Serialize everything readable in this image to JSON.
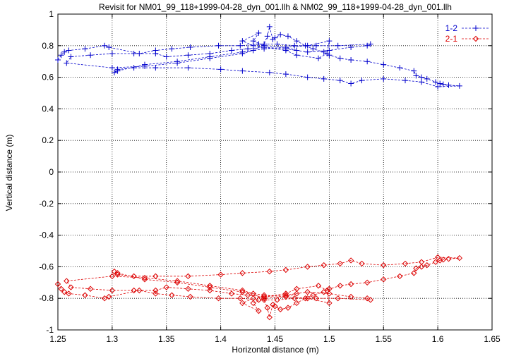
{
  "chart_data": {
    "type": "line",
    "title": "Revisit for NM01_99_118+1999-04-28_dyn_001.llh & NM02_99_118+1999-04-28_dyn_001.llh",
    "xlabel": "Horizontal distance (m)",
    "ylabel": "Vertical distance (m)",
    "xlim": [
      1.25,
      1.65
    ],
    "ylim": [
      -1,
      1
    ],
    "xticks": [
      "1.25",
      "1.3",
      "1.35",
      "1.4",
      "1.45",
      "1.5",
      "1.55",
      "1.6",
      "1.65"
    ],
    "yticks": [
      "1",
      "0.8",
      "0.6",
      "0.4",
      "0.2",
      "0",
      "-0.2",
      "-0.4",
      "-0.6",
      "-0.8",
      "-1"
    ],
    "grid": true,
    "legend_position": "top-right",
    "series": [
      {
        "name": "1-2",
        "color": "#0000cc",
        "marker": "plus",
        "points": [
          [
            1.25,
            0.71
          ],
          [
            1.253,
            0.74
          ],
          [
            1.256,
            0.76
          ],
          [
            1.26,
            0.77
          ],
          [
            1.275,
            0.78
          ],
          [
            1.293,
            0.8
          ],
          [
            1.297,
            0.79
          ],
          [
            1.325,
            0.75
          ],
          [
            1.34,
            0.77
          ],
          [
            1.355,
            0.78
          ],
          [
            1.372,
            0.79
          ],
          [
            1.398,
            0.8
          ],
          [
            1.418,
            0.8
          ],
          [
            1.435,
            0.81
          ],
          [
            1.452,
            0.81
          ],
          [
            1.468,
            0.8
          ],
          [
            1.488,
            0.8
          ],
          [
            1.508,
            0.8
          ],
          [
            1.538,
            0.81
          ],
          [
            1.535,
            0.8
          ],
          [
            1.52,
            0.79
          ],
          [
            1.5,
            0.77
          ],
          [
            1.48,
            0.76
          ],
          [
            1.46,
            0.78
          ],
          [
            1.44,
            0.79
          ],
          [
            1.425,
            0.78
          ],
          [
            1.41,
            0.77
          ],
          [
            1.39,
            0.75
          ],
          [
            1.37,
            0.74
          ],
          [
            1.35,
            0.73
          ],
          [
            1.34,
            0.75
          ],
          [
            1.32,
            0.75
          ],
          [
            1.3,
            0.75
          ],
          [
            1.28,
            0.74
          ],
          [
            1.262,
            0.73
          ],
          [
            1.258,
            0.69
          ],
          [
            1.3,
            0.66
          ],
          [
            1.33,
            0.67
          ],
          [
            1.36,
            0.69
          ],
          [
            1.39,
            0.72
          ],
          [
            1.42,
            0.75
          ],
          [
            1.43,
            0.77
          ],
          [
            1.44,
            0.81
          ],
          [
            1.443,
            0.86
          ],
          [
            1.445,
            0.92
          ],
          [
            1.448,
            0.84
          ],
          [
            1.45,
            0.85
          ],
          [
            1.455,
            0.87
          ],
          [
            1.462,
            0.86
          ],
          [
            1.47,
            0.83
          ],
          [
            1.478,
            0.8
          ],
          [
            1.485,
            0.78
          ],
          [
            1.495,
            0.76
          ],
          [
            1.5,
            0.74
          ],
          [
            1.51,
            0.72
          ],
          [
            1.52,
            0.71
          ],
          [
            1.535,
            0.7
          ],
          [
            1.55,
            0.68
          ],
          [
            1.565,
            0.66
          ],
          [
            1.578,
            0.64
          ],
          [
            1.58,
            0.61
          ],
          [
            1.585,
            0.6
          ],
          [
            1.59,
            0.59
          ],
          [
            1.598,
            0.57
          ],
          [
            1.602,
            0.56
          ],
          [
            1.605,
            0.555
          ],
          [
            1.61,
            0.55
          ],
          [
            1.62,
            0.545
          ],
          [
            1.6,
            0.54
          ],
          [
            1.585,
            0.57
          ],
          [
            1.57,
            0.58
          ],
          [
            1.55,
            0.59
          ],
          [
            1.53,
            0.58
          ],
          [
            1.52,
            0.56
          ],
          [
            1.51,
            0.58
          ],
          [
            1.495,
            0.59
          ],
          [
            1.48,
            0.6
          ],
          [
            1.46,
            0.62
          ],
          [
            1.445,
            0.63
          ],
          [
            1.42,
            0.64
          ],
          [
            1.4,
            0.65
          ],
          [
            1.37,
            0.66
          ],
          [
            1.34,
            0.66
          ],
          [
            1.32,
            0.66
          ],
          [
            1.305,
            0.65
          ],
          [
            1.302,
            0.63
          ],
          [
            1.305,
            0.64
          ],
          [
            1.33,
            0.68
          ],
          [
            1.36,
            0.7
          ],
          [
            1.39,
            0.73
          ],
          [
            1.42,
            0.76
          ],
          [
            1.44,
            0.78
          ],
          [
            1.46,
            0.79
          ],
          [
            1.48,
            0.8
          ],
          [
            1.5,
            0.83
          ],
          [
            1.498,
            0.75
          ],
          [
            1.49,
            0.72
          ],
          [
            1.47,
            0.74
          ],
          [
            1.46,
            0.77
          ],
          [
            1.43,
            0.8
          ],
          [
            1.42,
            0.83
          ],
          [
            1.435,
            0.88
          ],
          [
            1.43,
            0.83
          ],
          [
            1.44,
            0.8
          ],
          [
            1.46,
            0.79
          ],
          [
            1.47,
            0.77
          ]
        ]
      },
      {
        "name": "2-1",
        "color": "#dd0000",
        "marker": "diamond",
        "points": [
          [
            1.25,
            -0.71
          ],
          [
            1.253,
            -0.74
          ],
          [
            1.256,
            -0.76
          ],
          [
            1.26,
            -0.77
          ],
          [
            1.275,
            -0.78
          ],
          [
            1.293,
            -0.8
          ],
          [
            1.297,
            -0.79
          ],
          [
            1.325,
            -0.75
          ],
          [
            1.34,
            -0.77
          ],
          [
            1.355,
            -0.78
          ],
          [
            1.372,
            -0.79
          ],
          [
            1.398,
            -0.8
          ],
          [
            1.418,
            -0.8
          ],
          [
            1.435,
            -0.81
          ],
          [
            1.452,
            -0.81
          ],
          [
            1.468,
            -0.8
          ],
          [
            1.488,
            -0.8
          ],
          [
            1.508,
            -0.8
          ],
          [
            1.538,
            -0.81
          ],
          [
            1.535,
            -0.8
          ],
          [
            1.52,
            -0.79
          ],
          [
            1.5,
            -0.77
          ],
          [
            1.48,
            -0.76
          ],
          [
            1.46,
            -0.78
          ],
          [
            1.44,
            -0.79
          ],
          [
            1.425,
            -0.78
          ],
          [
            1.41,
            -0.77
          ],
          [
            1.39,
            -0.75
          ],
          [
            1.37,
            -0.74
          ],
          [
            1.35,
            -0.73
          ],
          [
            1.34,
            -0.75
          ],
          [
            1.32,
            -0.75
          ],
          [
            1.3,
            -0.75
          ],
          [
            1.28,
            -0.74
          ],
          [
            1.262,
            -0.73
          ],
          [
            1.258,
            -0.69
          ],
          [
            1.3,
            -0.66
          ],
          [
            1.33,
            -0.67
          ],
          [
            1.36,
            -0.69
          ],
          [
            1.39,
            -0.72
          ],
          [
            1.42,
            -0.75
          ],
          [
            1.43,
            -0.77
          ],
          [
            1.44,
            -0.81
          ],
          [
            1.443,
            -0.86
          ],
          [
            1.445,
            -0.92
          ],
          [
            1.448,
            -0.84
          ],
          [
            1.45,
            -0.85
          ],
          [
            1.455,
            -0.87
          ],
          [
            1.462,
            -0.86
          ],
          [
            1.47,
            -0.83
          ],
          [
            1.478,
            -0.8
          ],
          [
            1.485,
            -0.78
          ],
          [
            1.495,
            -0.76
          ],
          [
            1.5,
            -0.74
          ],
          [
            1.51,
            -0.72
          ],
          [
            1.52,
            -0.71
          ],
          [
            1.535,
            -0.7
          ],
          [
            1.55,
            -0.68
          ],
          [
            1.565,
            -0.66
          ],
          [
            1.578,
            -0.64
          ],
          [
            1.58,
            -0.61
          ],
          [
            1.585,
            -0.6
          ],
          [
            1.59,
            -0.59
          ],
          [
            1.598,
            -0.57
          ],
          [
            1.602,
            -0.56
          ],
          [
            1.605,
            -0.555
          ],
          [
            1.61,
            -0.55
          ],
          [
            1.62,
            -0.545
          ],
          [
            1.6,
            -0.54
          ],
          [
            1.585,
            -0.57
          ],
          [
            1.57,
            -0.58
          ],
          [
            1.55,
            -0.59
          ],
          [
            1.53,
            -0.58
          ],
          [
            1.52,
            -0.56
          ],
          [
            1.51,
            -0.58
          ],
          [
            1.495,
            -0.59
          ],
          [
            1.48,
            -0.6
          ],
          [
            1.46,
            -0.62
          ],
          [
            1.445,
            -0.63
          ],
          [
            1.42,
            -0.64
          ],
          [
            1.4,
            -0.65
          ],
          [
            1.37,
            -0.66
          ],
          [
            1.34,
            -0.66
          ],
          [
            1.32,
            -0.66
          ],
          [
            1.305,
            -0.65
          ],
          [
            1.302,
            -0.63
          ],
          [
            1.305,
            -0.64
          ],
          [
            1.33,
            -0.68
          ],
          [
            1.36,
            -0.7
          ],
          [
            1.39,
            -0.73
          ],
          [
            1.42,
            -0.76
          ],
          [
            1.44,
            -0.78
          ],
          [
            1.46,
            -0.79
          ],
          [
            1.48,
            -0.8
          ],
          [
            1.5,
            -0.83
          ],
          [
            1.498,
            -0.75
          ],
          [
            1.49,
            -0.72
          ],
          [
            1.47,
            -0.74
          ],
          [
            1.46,
            -0.77
          ],
          [
            1.43,
            -0.8
          ],
          [
            1.42,
            -0.83
          ],
          [
            1.435,
            -0.88
          ],
          [
            1.43,
            -0.83
          ],
          [
            1.44,
            -0.8
          ],
          [
            1.46,
            -0.79
          ],
          [
            1.47,
            -0.77
          ]
        ]
      }
    ]
  }
}
